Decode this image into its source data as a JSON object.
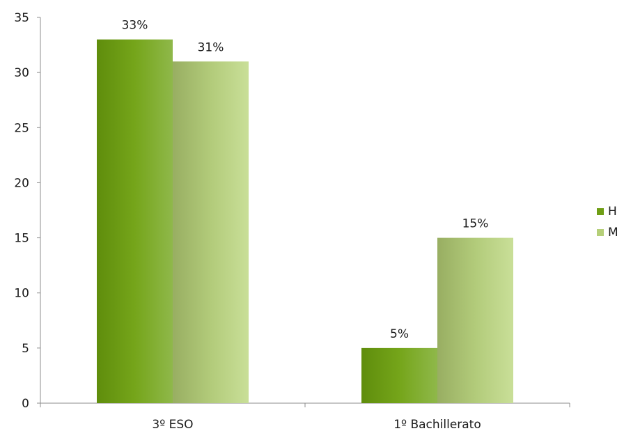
{
  "chart_data": {
    "type": "bar",
    "categories": [
      "3º ESO",
      "1º Bachillerato"
    ],
    "series": [
      {
        "name": "H",
        "values": [
          33,
          5
        ],
        "labels": [
          "33%",
          "5%"
        ],
        "color": "#6f9e15"
      },
      {
        "name": "M",
        "values": [
          31,
          15
        ],
        "labels": [
          "31%",
          "15%"
        ],
        "color": "#b5cf78"
      }
    ],
    "ylim": [
      0,
      35
    ],
    "yticks": [
      0,
      5,
      10,
      15,
      20,
      25,
      30,
      35
    ],
    "grid": false,
    "legend": "right"
  }
}
